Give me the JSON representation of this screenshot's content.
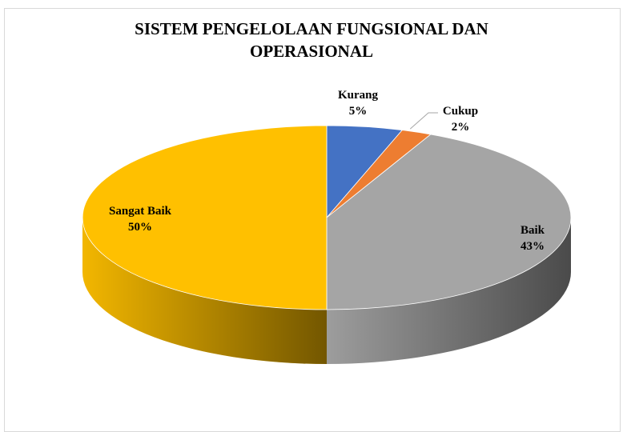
{
  "chart_data": {
    "type": "pie",
    "title": "SISTEM PENGELOLAAN FUNGSIONAL DAN OPERASIONAL",
    "categories": [
      "Kurang",
      "Cukup",
      "Baik",
      "Sangat Baik"
    ],
    "values": [
      5,
      2,
      43,
      50
    ],
    "value_labels": [
      "5%",
      "2%",
      "43%",
      "50%"
    ],
    "colors": [
      "#4472c4",
      "#ed7d31",
      "#a5a5a5",
      "#ffc000"
    ]
  }
}
